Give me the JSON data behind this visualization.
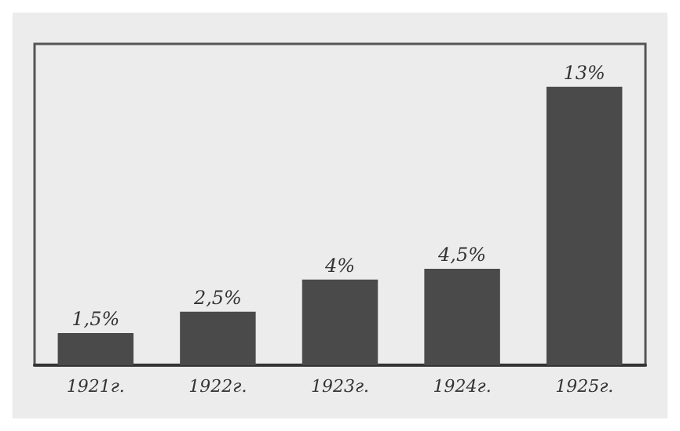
{
  "chart_data": {
    "type": "bar",
    "categories": [
      "1921г.",
      "1922г.",
      "1923г.",
      "1924г.",
      "1925г."
    ],
    "values": [
      1.5,
      2.5,
      4,
      4.5,
      13
    ],
    "value_labels": [
      "1,5%",
      "2,5%",
      "4%",
      "4,5%",
      "13%"
    ],
    "color": "#4a4a4a"
  }
}
